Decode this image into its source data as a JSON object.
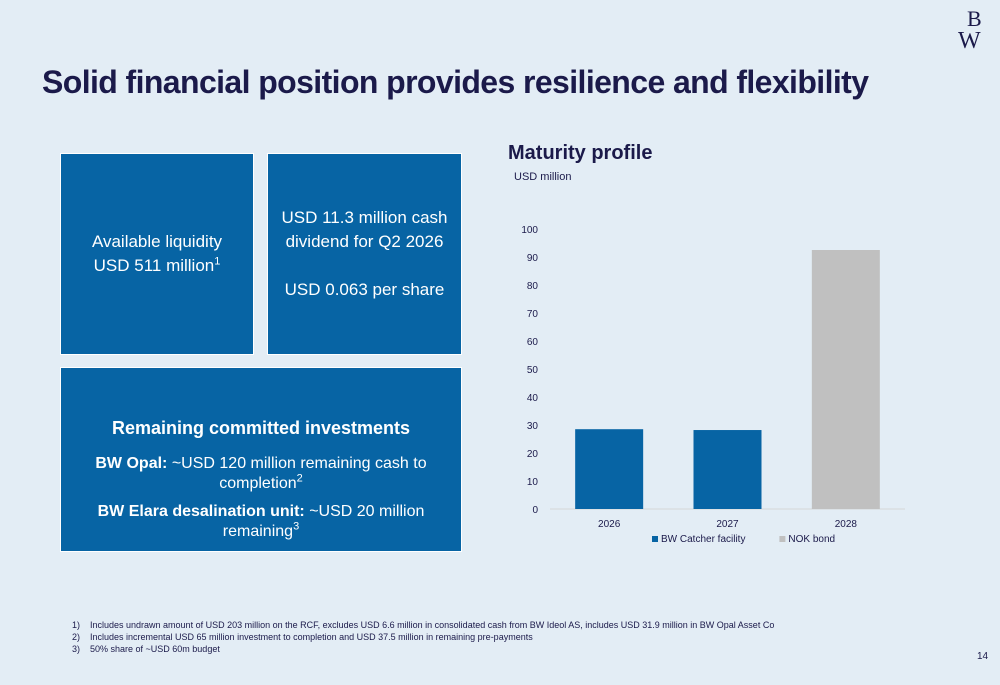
{
  "slide": {
    "title": "Solid financial position provides resilience and flexibility",
    "page_number": "14",
    "logo_text": "BW"
  },
  "liquidity_box": {
    "line1": "Available liquidity",
    "line2": "USD 511 million",
    "footnote_ref": "1"
  },
  "dividend_box": {
    "line1": "USD 11.3 million cash",
    "line2": "dividend for Q2 2026",
    "line3": "USD 0.063 per share"
  },
  "investments_box": {
    "heading": "Remaining committed investments",
    "item1_label": "BW Opal:",
    "item1_text": " ~USD 120 million remaining cash to completion",
    "item1_ref": "2",
    "item2_label": "BW Elara desalination unit:",
    "item2_text": " ~USD 20 million remaining",
    "item2_ref": "3"
  },
  "chart_title": "Maturity profile",
  "chart_unit": "USD million",
  "chart_data": {
    "type": "bar",
    "categories": [
      "2026",
      "2027",
      "2028"
    ],
    "series": [
      {
        "name": "BW Catcher facility",
        "values": [
          28.5,
          28.2,
          0
        ],
        "color": "#0764a4"
      },
      {
        "name": "NOK bond",
        "values": [
          0,
          0,
          92.5
        ],
        "color": "#c0c0c0"
      }
    ],
    "ylim": [
      0,
      100
    ],
    "yticks": [
      "0",
      "10",
      "20",
      "30",
      "40",
      "50",
      "60",
      "70",
      "80",
      "90",
      "100"
    ],
    "grid": false,
    "legend_position": "bottom"
  },
  "footnotes": [
    {
      "num": "1)",
      "text": "Includes undrawn amount of USD 203 million on the RCF, excludes USD 6.6 million in consolidated cash from BW Ideol AS, includes USD 31.9 million in BW Opal Asset Co"
    },
    {
      "num": "2)",
      "text": "Includes incremental USD 65 million investment to completion and USD 37.5 million in remaining pre-payments"
    },
    {
      "num": "3)",
      "text": "50% share of ~USD 60m budget"
    }
  ],
  "colors": {
    "background": "#e3edf5",
    "box_blue": "#0764a4",
    "title_navy": "#1b1a4a",
    "bond_gray": "#c0c0c0"
  }
}
